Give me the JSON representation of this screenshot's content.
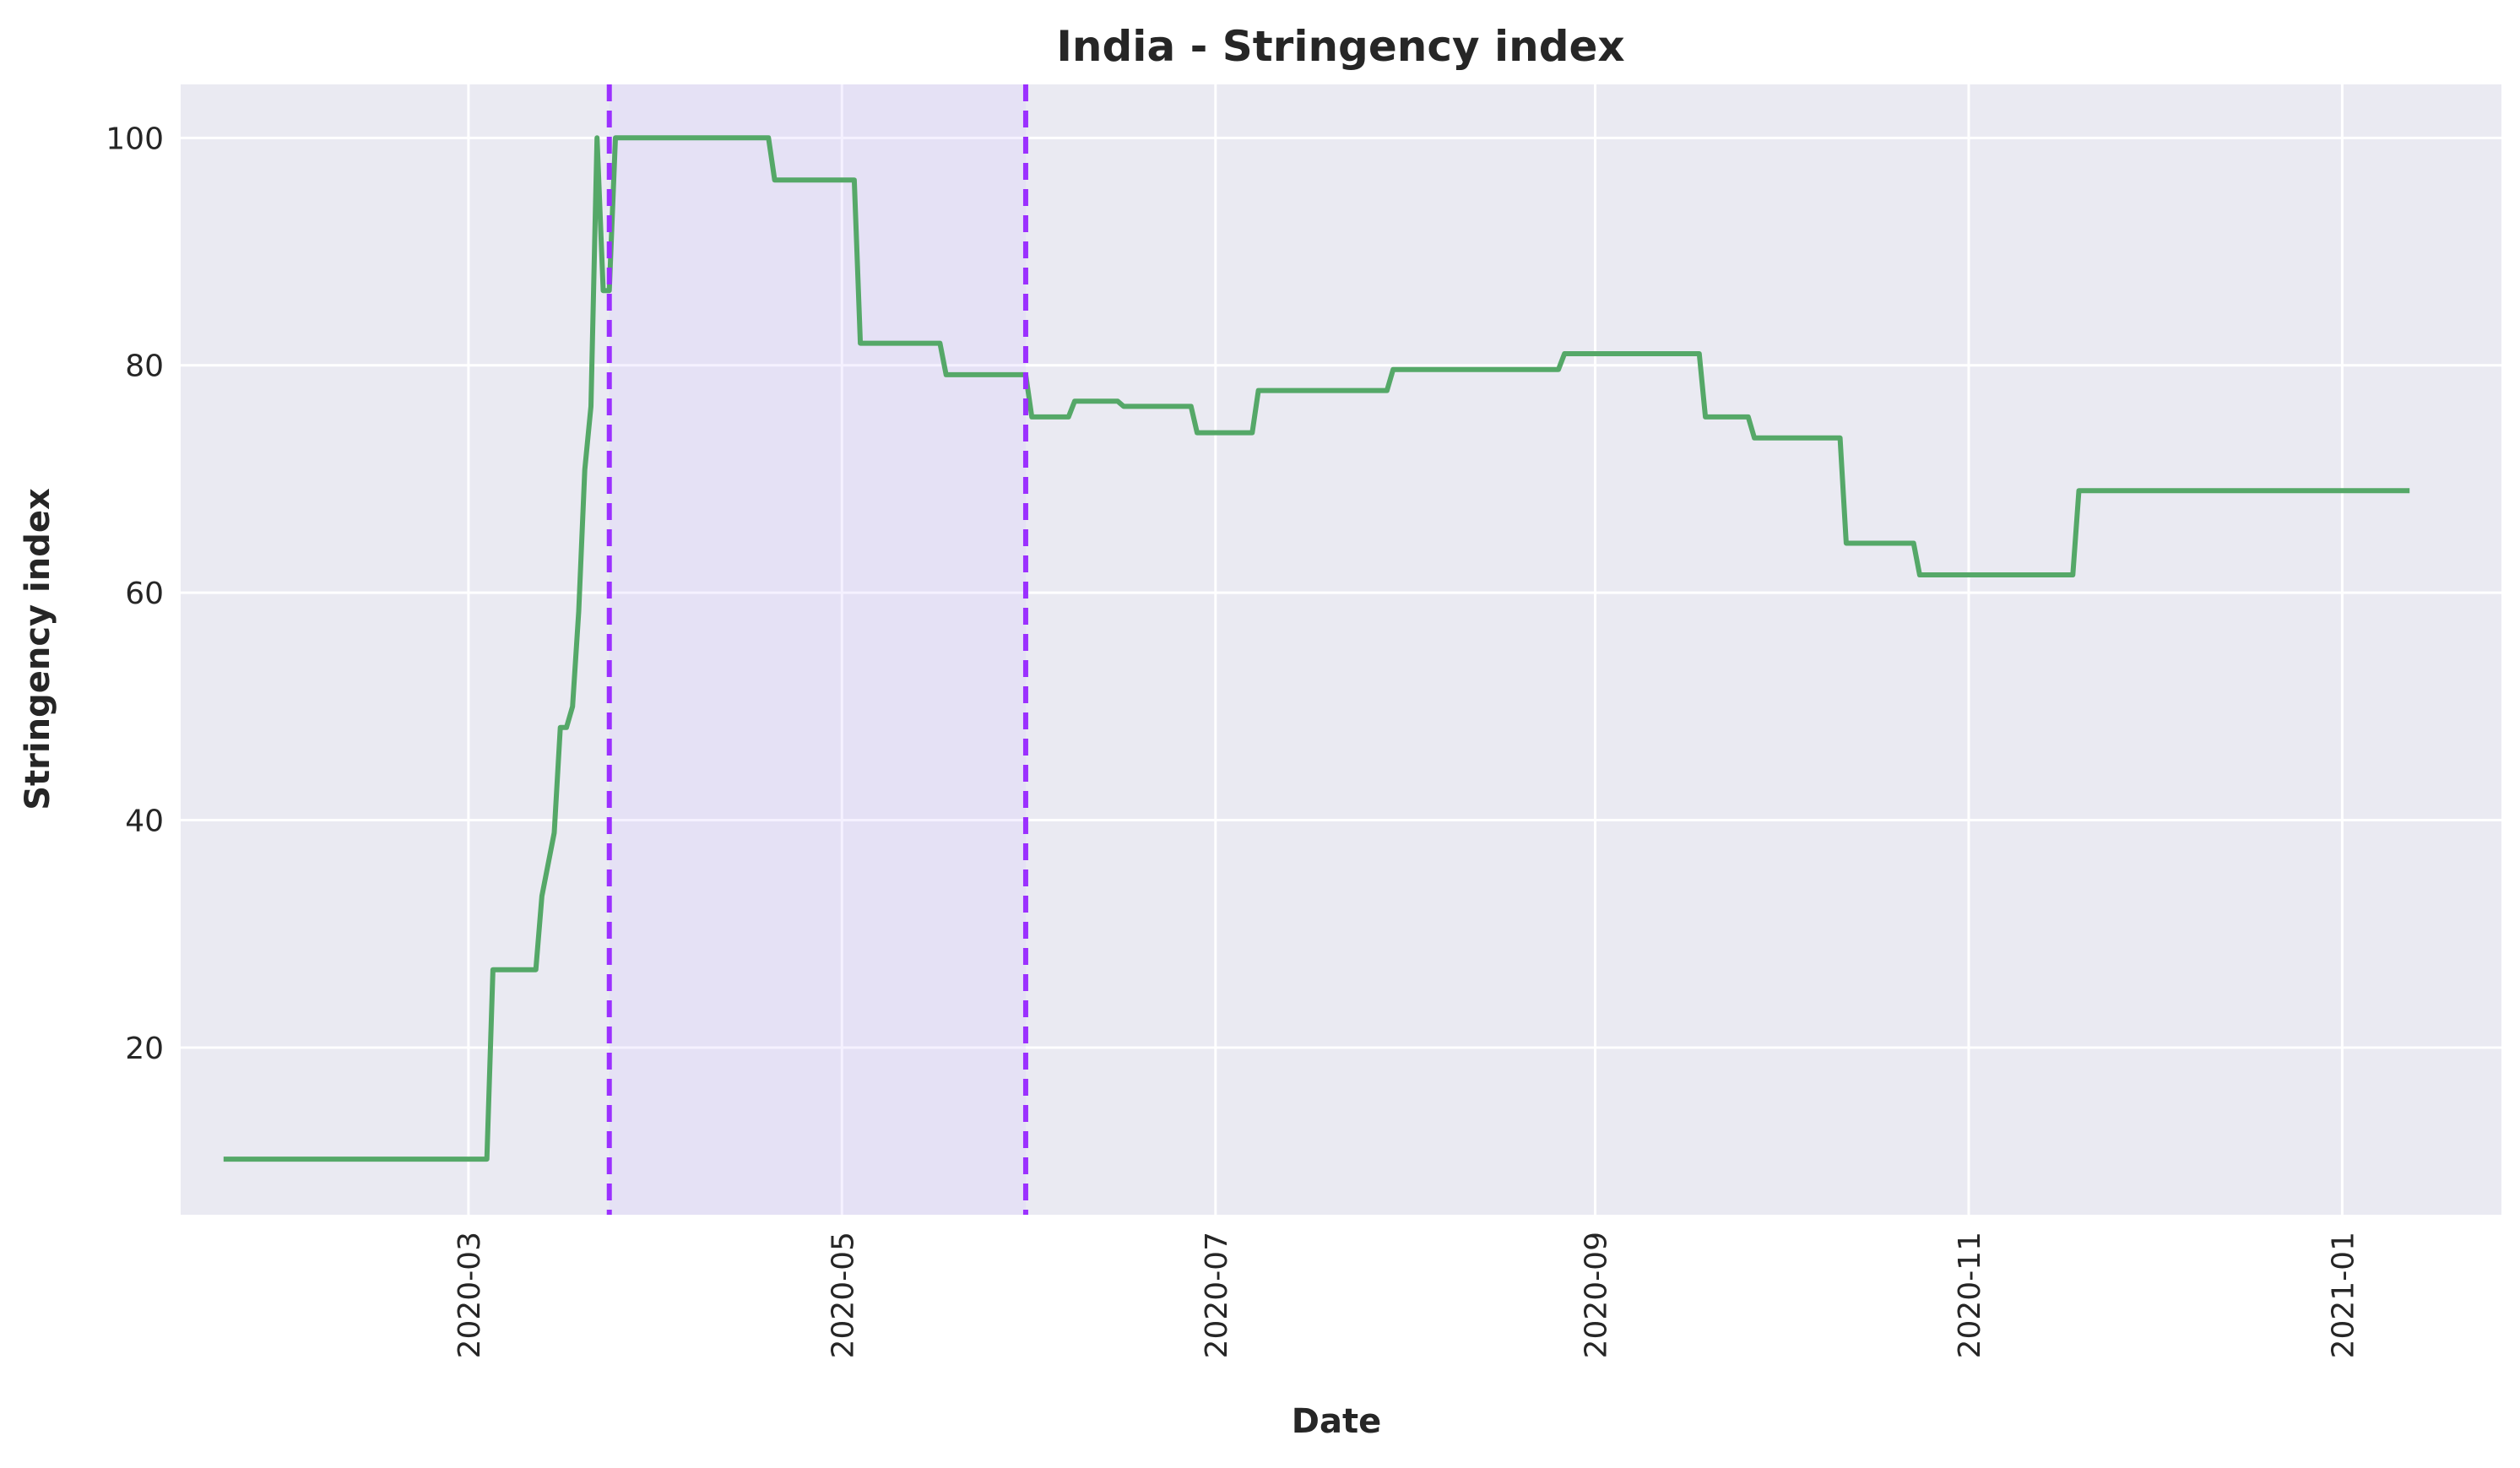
{
  "chart_data": {
    "type": "line",
    "title": "India - Stringency index",
    "xlabel": "Date",
    "ylabel": "Stringency index",
    "x_tick_labels": [
      "2020-03",
      "2020-05",
      "2020-07",
      "2020-09",
      "2020-11",
      "2021-01"
    ],
    "y_tick_labels": [
      "20",
      "40",
      "60",
      "80",
      "100"
    ],
    "xlim": [
      "2020-01-14",
      "2021-01-27"
    ],
    "ylim": [
      5.3,
      104.7
    ],
    "grid": true,
    "series": [
      {
        "color": "#55a868",
        "points": [
          [
            "2020-01-21",
            10.19
          ],
          [
            "2020-02-20",
            10.19
          ],
          [
            "2020-03-04",
            10.19
          ],
          [
            "2020-03-05",
            26.85
          ],
          [
            "2020-03-12",
            26.85
          ],
          [
            "2020-03-13",
            33.33
          ],
          [
            "2020-03-15",
            38.89
          ],
          [
            "2020-03-16",
            48.15
          ],
          [
            "2020-03-17",
            48.15
          ],
          [
            "2020-03-18",
            50.0
          ],
          [
            "2020-03-19",
            58.33
          ],
          [
            "2020-03-20",
            70.83
          ],
          [
            "2020-03-21",
            76.39
          ],
          [
            "2020-03-22",
            100.0
          ],
          [
            "2020-03-23",
            86.57
          ],
          [
            "2020-03-24",
            86.57
          ],
          [
            "2020-03-25",
            100.0
          ],
          [
            "2020-04-19",
            100.0
          ],
          [
            "2020-04-20",
            96.3
          ],
          [
            "2020-05-03",
            96.3
          ],
          [
            "2020-05-04",
            81.94
          ],
          [
            "2020-05-17",
            81.94
          ],
          [
            "2020-05-18",
            79.17
          ],
          [
            "2020-05-31",
            79.17
          ],
          [
            "2020-06-01",
            75.46
          ],
          [
            "2020-06-07",
            75.46
          ],
          [
            "2020-06-08",
            76.85
          ],
          [
            "2020-06-15",
            76.85
          ],
          [
            "2020-06-16",
            76.39
          ],
          [
            "2020-06-27",
            76.39
          ],
          [
            "2020-06-28",
            74.07
          ],
          [
            "2020-07-07",
            74.07
          ],
          [
            "2020-07-08",
            77.78
          ],
          [
            "2020-07-29",
            77.78
          ],
          [
            "2020-07-30",
            79.63
          ],
          [
            "2020-08-26",
            79.63
          ],
          [
            "2020-08-27",
            81.02
          ],
          [
            "2020-09-18",
            81.02
          ],
          [
            "2020-09-19",
            75.46
          ],
          [
            "2020-09-26",
            75.46
          ],
          [
            "2020-09-27",
            73.61
          ],
          [
            "2020-10-11",
            73.61
          ],
          [
            "2020-10-12",
            64.35
          ],
          [
            "2020-10-23",
            64.35
          ],
          [
            "2020-10-24",
            61.57
          ],
          [
            "2020-11-18",
            61.57
          ],
          [
            "2020-11-19",
            68.98
          ],
          [
            "2021-01-12",
            68.98
          ]
        ]
      }
    ],
    "vertical_lines": [
      {
        "x": "2020-03-24",
        "color": "#9b30ff",
        "style": "dashed"
      },
      {
        "x": "2020-05-31",
        "color": "#9b30ff",
        "style": "dashed"
      }
    ],
    "shaded_region": {
      "x_start": "2020-03-24",
      "x_end": "2020-05-31",
      "color": "#d8c8ff"
    },
    "colors": {
      "background": "#eaeaf2",
      "grid": "#ffffff",
      "line": "#55a868",
      "marker": "#9b30ff"
    }
  }
}
